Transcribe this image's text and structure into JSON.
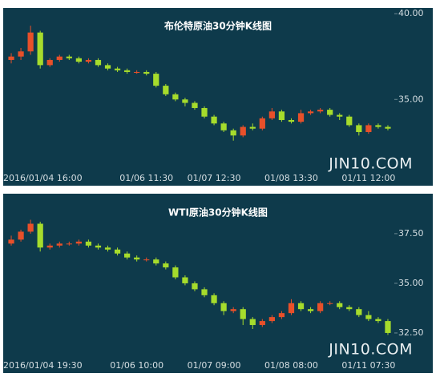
{
  "chart_data": [
    {
      "type": "candlestick",
      "title": "布伦特原油30分钟K线图",
      "watermark": "JIN10.COM",
      "up_color": "#e8502a",
      "down_color": "#a6dc2c",
      "categories": [
        "2016/01/04 16:00",
        null,
        null,
        null,
        null,
        null,
        null,
        null,
        null,
        null,
        null,
        null,
        null,
        null,
        "01/06 11:30",
        null,
        null,
        null,
        null,
        null,
        null,
        "01/07 12:30",
        null,
        null,
        null,
        null,
        null,
        null,
        null,
        "01/08 13:30",
        null,
        null,
        null,
        null,
        null,
        null,
        null,
        "01/11 12:00",
        null,
        null
      ],
      "open": [
        37.3,
        37.5,
        37.8,
        38.9,
        37.0,
        37.3,
        37.5,
        37.4,
        37.2,
        37.3,
        37.0,
        36.8,
        36.7,
        36.6,
        36.6,
        36.5,
        35.8,
        35.3,
        35.0,
        34.8,
        34.5,
        34.0,
        33.6,
        33.2,
        32.9,
        33.4,
        33.3,
        33.9,
        34.3,
        33.8,
        33.7,
        34.2,
        34.3,
        34.4,
        34.1,
        34.0,
        33.5,
        33.1,
        33.5,
        33.4
      ],
      "high": [
        37.7,
        38.0,
        39.3,
        39.0,
        37.4,
        37.6,
        37.6,
        37.5,
        37.4,
        37.4,
        37.1,
        36.9,
        36.8,
        36.7,
        36.7,
        36.6,
        35.9,
        35.4,
        35.1,
        34.9,
        34.6,
        34.1,
        33.7,
        33.3,
        33.5,
        33.6,
        34.0,
        34.5,
        34.4,
        33.9,
        34.4,
        34.4,
        34.5,
        34.5,
        34.2,
        34.1,
        33.6,
        33.6,
        33.6,
        33.5
      ],
      "low": [
        37.1,
        37.3,
        37.6,
        36.8,
        36.9,
        37.2,
        37.3,
        37.1,
        37.1,
        36.9,
        36.7,
        36.6,
        36.5,
        36.5,
        36.4,
        35.7,
        35.2,
        34.9,
        34.6,
        34.4,
        33.9,
        33.5,
        33.1,
        32.6,
        32.8,
        33.2,
        33.2,
        33.8,
        33.7,
        33.6,
        33.6,
        34.1,
        34.2,
        34.0,
        33.8,
        33.4,
        32.9,
        33.0,
        33.3,
        33.2
      ],
      "close": [
        37.5,
        37.8,
        38.9,
        37.0,
        37.3,
        37.5,
        37.4,
        37.2,
        37.3,
        37.0,
        36.8,
        36.7,
        36.6,
        36.6,
        36.5,
        35.8,
        35.3,
        35.0,
        34.8,
        34.5,
        34.0,
        33.6,
        33.2,
        32.9,
        33.4,
        33.3,
        33.9,
        34.3,
        33.8,
        33.7,
        34.2,
        34.3,
        34.4,
        34.1,
        34.0,
        33.5,
        33.1,
        33.5,
        33.4,
        33.3
      ],
      "ylim": [
        31,
        40.33
      ],
      "yticks": [
        {
          "value": 40,
          "label": "40.00"
        },
        {
          "value": 35,
          "label": "35.00"
        }
      ]
    },
    {
      "type": "candlestick",
      "title": "WTI原油30分钟K线图",
      "watermark": "JIN10.COM",
      "up_color": "#e8502a",
      "down_color": "#a6dc2c",
      "categories": [
        "2016/01/04 19:30",
        null,
        null,
        null,
        null,
        null,
        null,
        null,
        null,
        null,
        null,
        null,
        null,
        "01/06 10:00",
        null,
        null,
        null,
        null,
        null,
        null,
        null,
        "01/07 09:00",
        null,
        null,
        null,
        null,
        null,
        null,
        null,
        "01/08 08:00",
        null,
        null,
        null,
        null,
        null,
        null,
        null,
        "01/11 07:30",
        null,
        null
      ],
      "open": [
        37.0,
        37.2,
        37.6,
        38.0,
        36.8,
        36.9,
        37.0,
        37.0,
        37.1,
        36.9,
        36.8,
        36.7,
        36.5,
        36.3,
        36.2,
        36.2,
        36.0,
        35.8,
        35.3,
        35.0,
        34.7,
        34.4,
        34.0,
        33.6,
        33.7,
        33.2,
        32.9,
        33.1,
        33.3,
        33.5,
        34.0,
        33.7,
        33.6,
        34.0,
        34.0,
        33.8,
        33.7,
        33.4,
        33.2,
        33.1
      ],
      "high": [
        37.4,
        37.7,
        38.2,
        38.1,
        37.0,
        37.1,
        37.1,
        37.2,
        37.2,
        37.0,
        36.9,
        36.8,
        36.6,
        36.4,
        36.3,
        36.3,
        36.1,
        35.9,
        35.4,
        35.1,
        34.8,
        34.5,
        34.1,
        33.8,
        33.8,
        33.3,
        33.2,
        33.4,
        33.6,
        34.2,
        34.1,
        33.8,
        34.1,
        34.1,
        34.1,
        33.9,
        33.8,
        33.6,
        33.3,
        33.2
      ],
      "low": [
        36.9,
        37.1,
        37.5,
        36.6,
        36.7,
        36.8,
        36.9,
        36.9,
        36.8,
        36.7,
        36.6,
        36.4,
        36.2,
        36.1,
        36.1,
        35.9,
        35.7,
        35.2,
        34.9,
        34.6,
        34.3,
        33.9,
        33.4,
        33.5,
        32.9,
        32.7,
        32.8,
        33.0,
        33.2,
        33.4,
        33.6,
        33.5,
        33.5,
        33.9,
        33.7,
        33.6,
        33.3,
        33.1,
        33.0,
        32.4
      ],
      "close": [
        37.2,
        37.6,
        38.0,
        36.8,
        36.9,
        37.0,
        37.0,
        37.1,
        36.9,
        36.8,
        36.7,
        36.5,
        36.3,
        36.2,
        36.2,
        36.0,
        35.8,
        35.3,
        35.0,
        34.7,
        34.4,
        34.0,
        33.6,
        33.7,
        33.2,
        32.9,
        33.1,
        33.3,
        33.5,
        34.0,
        33.7,
        33.6,
        34.0,
        34.0,
        33.8,
        33.7,
        33.4,
        33.2,
        33.1,
        32.5
      ],
      "ylim": [
        31.33,
        39.27
      ],
      "yticks": [
        {
          "value": 37.5,
          "label": "37.50"
        },
        {
          "value": 35,
          "label": "35.00"
        },
        {
          "value": 32.5,
          "label": "32.50"
        }
      ]
    }
  ]
}
